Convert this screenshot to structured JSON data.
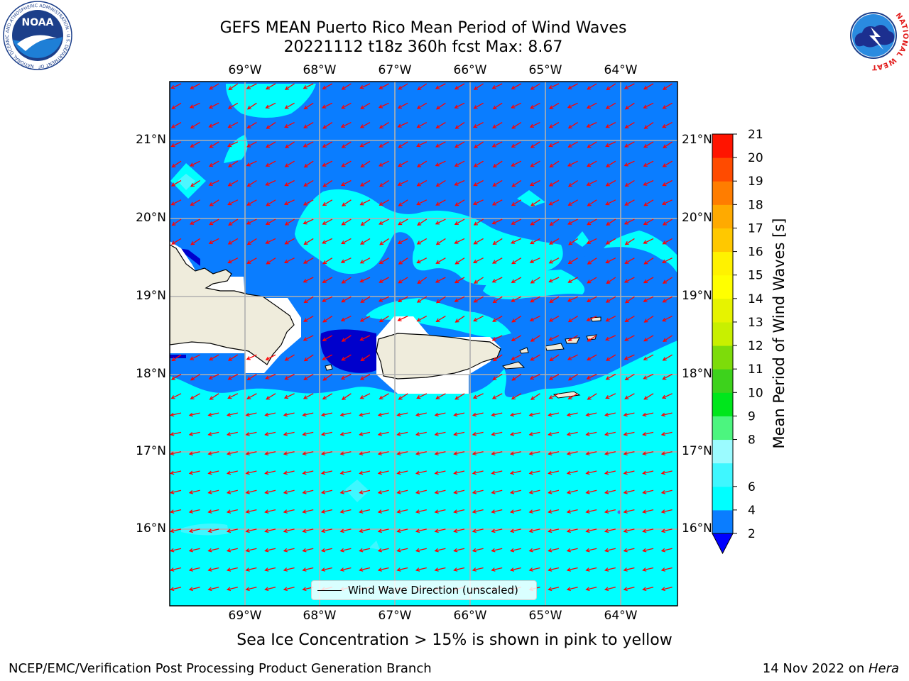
{
  "header": {
    "title_line1": "GEFS MEAN Puerto Rico Mean Period of Wind Waves",
    "title_line2": "20221112 t18z 360h fcst   Max: 8.67"
  },
  "logos": {
    "noaa_text": "NOAA",
    "noaa_ring": "NATIONAL OCEANIC AND ATMOSPHERIC ADMINISTRATION · U.S. DEPARTMENT OF COMMERCE",
    "nws_ring": "NATIONAL WEATHER SERVICE"
  },
  "chart_data": {
    "type": "heatmap",
    "title": "GEFS MEAN Puerto Rico Mean Period of Wind Waves",
    "subtitle": "20221112 t18z 360h fcst   Max: 8.67",
    "x_ticks": [
      "69°W",
      "68°W",
      "67°W",
      "66°W",
      "65°W",
      "64°W"
    ],
    "y_ticks": [
      "21°N",
      "20°N",
      "19°N",
      "18°N",
      "17°N",
      "16°N"
    ],
    "colorbar": {
      "label": "Mean Period of Wind Waves [s]",
      "ticks": [
        "2",
        "4",
        "6",
        "8",
        "9",
        "10",
        "11",
        "12",
        "13",
        "14",
        "15",
        "16",
        "17",
        "18",
        "19",
        "20",
        "21"
      ],
      "levels": [
        2,
        4,
        6,
        7,
        8,
        9,
        10,
        11,
        12,
        13,
        14,
        15,
        16,
        17,
        18,
        19,
        20,
        21
      ],
      "colors": [
        "#0a7dff",
        "#00ffff",
        "#3ff7ff",
        "#9bfbff",
        "#4cf57f",
        "#00e61c",
        "#3dd21c",
        "#7ddc0a",
        "#c8f000",
        "#e6f300",
        "#ffff00",
        "#fff200",
        "#ffc800",
        "#ffaa00",
        "#ff7d00",
        "#ff4b00",
        "#ff1400"
      ],
      "extend_color": "#0000ff"
    },
    "field_summary": {
      "max": 8.67,
      "regions": [
        {
          "area": "open sea south of 18N",
          "range_s": "4-6"
        },
        {
          "area": "north of 18N",
          "range_s": "2-4 with patches of 4-6"
        },
        {
          "area": "Mona Passage",
          "range_s": "<2"
        }
      ]
    },
    "vectors": {
      "label": "Wind Wave Direction (unscaled)",
      "color": "#ff0000",
      "direction_to": "west-southwest"
    },
    "legend": "Wind Wave Direction (unscaled)"
  },
  "caption": "Sea Ice Concentration > 15% is shown in pink to yellow",
  "footer": {
    "left": "NCEP/EMC/Verification Post Processing Product Generation Branch",
    "date": "14 Nov 2022 on ",
    "host": "Hera"
  },
  "colors": {
    "land": "#efecdc",
    "deep_blue": "#0a7dff",
    "cyan": "#00ffff",
    "navy": "#0000cc",
    "arrow": "#ff0000"
  }
}
